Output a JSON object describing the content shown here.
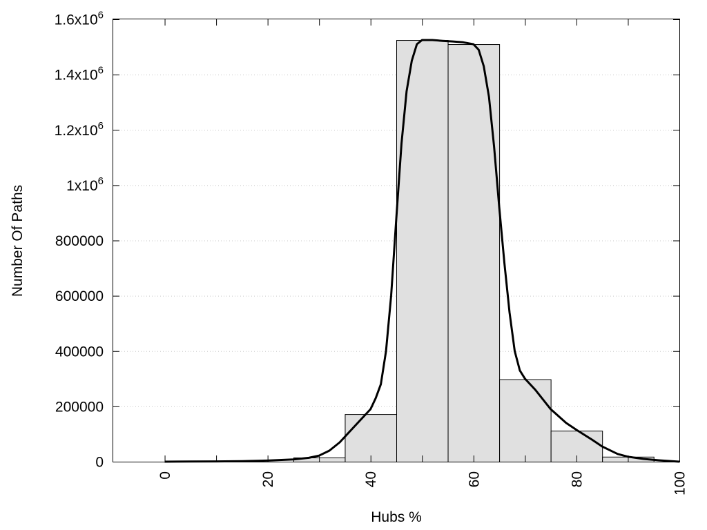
{
  "chart_data": {
    "type": "bar",
    "xlabel": "Hubs %",
    "ylabel": "Number Of Paths",
    "xlim": [
      -10,
      100
    ],
    "ylim": [
      0,
      1600000
    ],
    "grid": "horizontal-dotted",
    "x_ticks": [
      {
        "value": 0,
        "label": "0"
      },
      {
        "value": 20,
        "label": "20"
      },
      {
        "value": 40,
        "label": "40"
      },
      {
        "value": 60,
        "label": "60"
      },
      {
        "value": 80,
        "label": "80"
      },
      {
        "value": 100,
        "label": "100"
      }
    ],
    "x_minor_ticks": [
      10,
      30,
      50,
      70,
      90
    ],
    "y_ticks": [
      {
        "value": 0,
        "label": "0",
        "base": "",
        "exp": ""
      },
      {
        "value": 200000,
        "label": "200000",
        "base": "",
        "exp": ""
      },
      {
        "value": 400000,
        "label": "400000",
        "base": "",
        "exp": ""
      },
      {
        "value": 600000,
        "label": "600000",
        "base": "",
        "exp": ""
      },
      {
        "value": 800000,
        "label": "800000",
        "base": "",
        "exp": ""
      },
      {
        "value": 1000000,
        "label": "",
        "base": "1x10",
        "exp": "6"
      },
      {
        "value": 1200000,
        "label": "",
        "base": "1.2x10",
        "exp": "6"
      },
      {
        "value": 1400000,
        "label": "",
        "base": "1.4x10",
        "exp": "6"
      },
      {
        "value": 1600000,
        "label": "",
        "base": "1.6x10",
        "exp": "6"
      }
    ],
    "bars": [
      {
        "start": 25,
        "end": 35,
        "value": 15000
      },
      {
        "start": 35,
        "end": 45,
        "value": 172000
      },
      {
        "start": 45,
        "end": 55,
        "value": 1525000
      },
      {
        "start": 55,
        "end": 65,
        "value": 1510000
      },
      {
        "start": 65,
        "end": 75,
        "value": 298000
      },
      {
        "start": 75,
        "end": 85,
        "value": 112000
      },
      {
        "start": 85,
        "end": 95,
        "value": 18000
      }
    ],
    "curve": {
      "x": [
        0,
        5,
        10,
        15,
        20,
        25,
        28,
        30,
        32,
        34,
        36,
        38,
        40,
        41,
        42,
        43,
        44,
        45,
        46,
        47,
        48,
        49,
        50,
        52,
        54,
        56,
        58,
        60,
        61,
        62,
        63,
        64,
        65,
        66,
        67,
        68,
        69,
        70,
        72,
        75,
        78,
        80,
        83,
        85,
        88,
        90,
        93,
        96,
        100
      ],
      "y": [
        0,
        500,
        1000,
        2000,
        4000,
        8000,
        14000,
        22000,
        40000,
        70000,
        110000,
        150000,
        190000,
        230000,
        280000,
        400000,
        600000,
        880000,
        1150000,
        1340000,
        1450000,
        1510000,
        1525000,
        1525000,
        1522000,
        1520000,
        1517000,
        1510000,
        1490000,
        1430000,
        1320000,
        1140000,
        920000,
        720000,
        540000,
        400000,
        330000,
        300000,
        260000,
        190000,
        140000,
        115000,
        80000,
        55000,
        28000,
        18000,
        10000,
        5000,
        0
      ]
    }
  }
}
